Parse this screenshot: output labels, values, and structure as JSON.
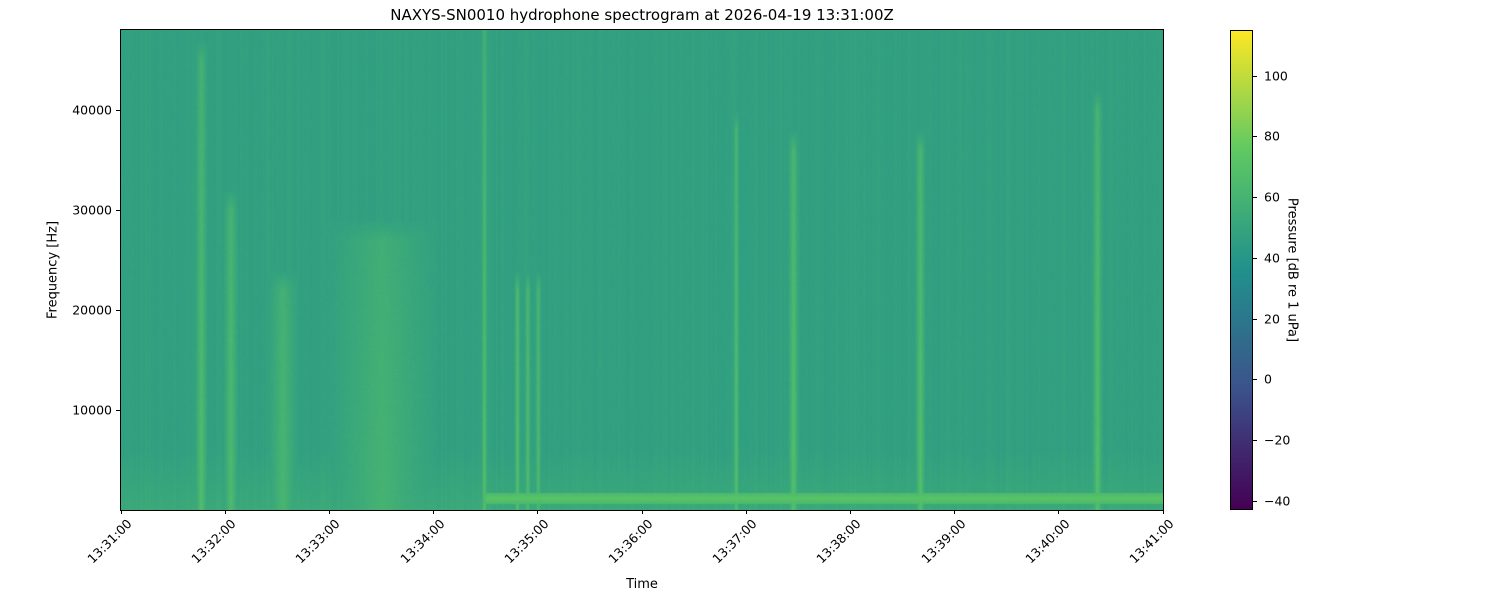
{
  "chart_data": {
    "type": "heatmap",
    "title": "NAXYS-SN0010 hydrophone spectrogram at 2026-04-19 13:31:00Z",
    "xlabel": "Time",
    "ylabel": "Frequency [Hz]",
    "colorbar_label": "Pressure [dB re 1 uPa]",
    "colormap": "viridis",
    "colormap_stops": [
      "#440154",
      "#3b528b",
      "#21918c",
      "#5ec962",
      "#fde725"
    ],
    "xlim": [
      "13:31:00",
      "13:41:00"
    ],
    "ylim": [
      0,
      48000
    ],
    "clim": [
      -43,
      115
    ],
    "x_ticks": [
      "13:31:00",
      "13:32:00",
      "13:33:00",
      "13:34:00",
      "13:35:00",
      "13:36:00",
      "13:37:00",
      "13:38:00",
      "13:39:00",
      "13:40:00",
      "13:41:00"
    ],
    "y_ticks": [
      10000,
      20000,
      30000,
      40000
    ],
    "y_tick_labels": [
      "10000",
      "20000",
      "30000",
      "40000"
    ],
    "colorbar_ticks": [
      -40,
      -20,
      0,
      20,
      40,
      60,
      80,
      100
    ],
    "colorbar_tick_labels": [
      "−40",
      "−20",
      "0",
      "20",
      "40",
      "60",
      "80",
      "100"
    ],
    "background_level_db": 47,
    "broadband_events": [
      {
        "time": "13:31:46",
        "duration_s": 6,
        "max_freq_hz": 45000,
        "level_db": 68
      },
      {
        "time": "13:32:03",
        "duration_s": 7,
        "max_freq_hz": 30000,
        "level_db": 66
      },
      {
        "time": "13:32:33",
        "duration_s": 14,
        "max_freq_hz": 22000,
        "level_db": 62
      },
      {
        "time": "13:33:30",
        "duration_s": 50,
        "max_freq_hz": 27000,
        "level_db": 60
      },
      {
        "time": "13:34:29",
        "duration_s": 3,
        "max_freq_hz": 48000,
        "level_db": 70
      },
      {
        "time": "13:34:48",
        "duration_s": 3,
        "max_freq_hz": 22000,
        "level_db": 70
      },
      {
        "time": "13:34:54",
        "duration_s": 3,
        "max_freq_hz": 22000,
        "level_db": 68
      },
      {
        "time": "13:35:00",
        "duration_s": 3,
        "max_freq_hz": 22000,
        "level_db": 66
      },
      {
        "time": "13:36:54",
        "duration_s": 3,
        "max_freq_hz": 38000,
        "level_db": 70
      },
      {
        "time": "13:37:27",
        "duration_s": 5,
        "max_freq_hz": 36000,
        "level_db": 70
      },
      {
        "time": "13:38:40",
        "duration_s": 5,
        "max_freq_hz": 36000,
        "level_db": 70
      },
      {
        "time": "13:40:22",
        "duration_s": 5,
        "max_freq_hz": 40000,
        "level_db": 70
      }
    ],
    "low_frequency_band": {
      "start": "13:34:30",
      "end": "13:41:00",
      "freq_hz": 1200,
      "level_db": 72
    }
  }
}
